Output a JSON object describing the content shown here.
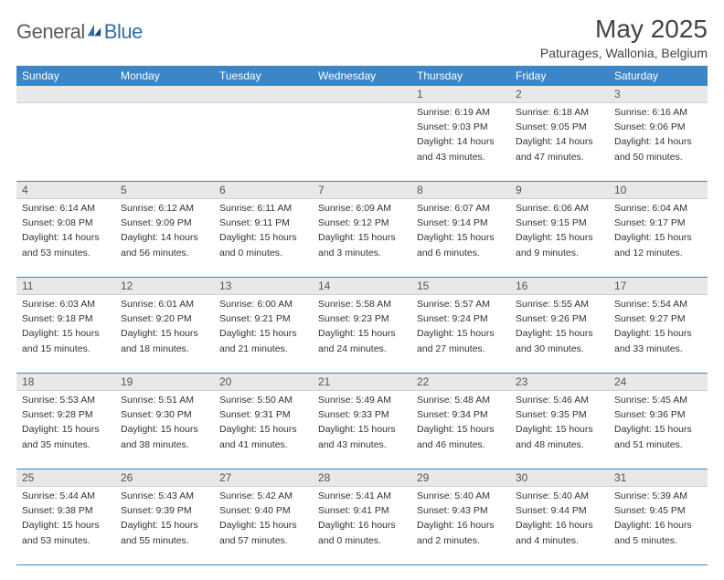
{
  "brand": {
    "part1": "General",
    "part2": "Blue",
    "color_general": "#5a5a5a",
    "color_blue": "#2f6fa8",
    "mark_color": "#2f6fa8"
  },
  "title": "May 2025",
  "location": "Paturages, Wallonia, Belgium",
  "header_bg": "#3b86c6",
  "header_fg": "#ffffff",
  "daynum_bg": "#e8e8e8",
  "border_color": "#3b86c6",
  "text_color": "#333333",
  "font_size_body": 10.5,
  "font_size_title": 28,
  "font_size_location": 14,
  "font_size_header": 12,
  "days_of_week": [
    "Sunday",
    "Monday",
    "Tuesday",
    "Wednesday",
    "Thursday",
    "Friday",
    "Saturday"
  ],
  "weeks": [
    [
      {
        "empty": true
      },
      {
        "empty": true
      },
      {
        "empty": true
      },
      {
        "empty": true
      },
      {
        "num": "1",
        "sunrise": "Sunrise: 6:19 AM",
        "sunset": "Sunset: 9:03 PM",
        "day1": "Daylight: 14 hours",
        "day2": "and 43 minutes."
      },
      {
        "num": "2",
        "sunrise": "Sunrise: 6:18 AM",
        "sunset": "Sunset: 9:05 PM",
        "day1": "Daylight: 14 hours",
        "day2": "and 47 minutes."
      },
      {
        "num": "3",
        "sunrise": "Sunrise: 6:16 AM",
        "sunset": "Sunset: 9:06 PM",
        "day1": "Daylight: 14 hours",
        "day2": "and 50 minutes."
      }
    ],
    [
      {
        "num": "4",
        "sunrise": "Sunrise: 6:14 AM",
        "sunset": "Sunset: 9:08 PM",
        "day1": "Daylight: 14 hours",
        "day2": "and 53 minutes."
      },
      {
        "num": "5",
        "sunrise": "Sunrise: 6:12 AM",
        "sunset": "Sunset: 9:09 PM",
        "day1": "Daylight: 14 hours",
        "day2": "and 56 minutes."
      },
      {
        "num": "6",
        "sunrise": "Sunrise: 6:11 AM",
        "sunset": "Sunset: 9:11 PM",
        "day1": "Daylight: 15 hours",
        "day2": "and 0 minutes."
      },
      {
        "num": "7",
        "sunrise": "Sunrise: 6:09 AM",
        "sunset": "Sunset: 9:12 PM",
        "day1": "Daylight: 15 hours",
        "day2": "and 3 minutes."
      },
      {
        "num": "8",
        "sunrise": "Sunrise: 6:07 AM",
        "sunset": "Sunset: 9:14 PM",
        "day1": "Daylight: 15 hours",
        "day2": "and 6 minutes."
      },
      {
        "num": "9",
        "sunrise": "Sunrise: 6:06 AM",
        "sunset": "Sunset: 9:15 PM",
        "day1": "Daylight: 15 hours",
        "day2": "and 9 minutes."
      },
      {
        "num": "10",
        "sunrise": "Sunrise: 6:04 AM",
        "sunset": "Sunset: 9:17 PM",
        "day1": "Daylight: 15 hours",
        "day2": "and 12 minutes."
      }
    ],
    [
      {
        "num": "11",
        "sunrise": "Sunrise: 6:03 AM",
        "sunset": "Sunset: 9:18 PM",
        "day1": "Daylight: 15 hours",
        "day2": "and 15 minutes."
      },
      {
        "num": "12",
        "sunrise": "Sunrise: 6:01 AM",
        "sunset": "Sunset: 9:20 PM",
        "day1": "Daylight: 15 hours",
        "day2": "and 18 minutes."
      },
      {
        "num": "13",
        "sunrise": "Sunrise: 6:00 AM",
        "sunset": "Sunset: 9:21 PM",
        "day1": "Daylight: 15 hours",
        "day2": "and 21 minutes."
      },
      {
        "num": "14",
        "sunrise": "Sunrise: 5:58 AM",
        "sunset": "Sunset: 9:23 PM",
        "day1": "Daylight: 15 hours",
        "day2": "and 24 minutes."
      },
      {
        "num": "15",
        "sunrise": "Sunrise: 5:57 AM",
        "sunset": "Sunset: 9:24 PM",
        "day1": "Daylight: 15 hours",
        "day2": "and 27 minutes."
      },
      {
        "num": "16",
        "sunrise": "Sunrise: 5:55 AM",
        "sunset": "Sunset: 9:26 PM",
        "day1": "Daylight: 15 hours",
        "day2": "and 30 minutes."
      },
      {
        "num": "17",
        "sunrise": "Sunrise: 5:54 AM",
        "sunset": "Sunset: 9:27 PM",
        "day1": "Daylight: 15 hours",
        "day2": "and 33 minutes."
      }
    ],
    [
      {
        "num": "18",
        "sunrise": "Sunrise: 5:53 AM",
        "sunset": "Sunset: 9:28 PM",
        "day1": "Daylight: 15 hours",
        "day2": "and 35 minutes."
      },
      {
        "num": "19",
        "sunrise": "Sunrise: 5:51 AM",
        "sunset": "Sunset: 9:30 PM",
        "day1": "Daylight: 15 hours",
        "day2": "and 38 minutes."
      },
      {
        "num": "20",
        "sunrise": "Sunrise: 5:50 AM",
        "sunset": "Sunset: 9:31 PM",
        "day1": "Daylight: 15 hours",
        "day2": "and 41 minutes."
      },
      {
        "num": "21",
        "sunrise": "Sunrise: 5:49 AM",
        "sunset": "Sunset: 9:33 PM",
        "day1": "Daylight: 15 hours",
        "day2": "and 43 minutes."
      },
      {
        "num": "22",
        "sunrise": "Sunrise: 5:48 AM",
        "sunset": "Sunset: 9:34 PM",
        "day1": "Daylight: 15 hours",
        "day2": "and 46 minutes."
      },
      {
        "num": "23",
        "sunrise": "Sunrise: 5:46 AM",
        "sunset": "Sunset: 9:35 PM",
        "day1": "Daylight: 15 hours",
        "day2": "and 48 minutes."
      },
      {
        "num": "24",
        "sunrise": "Sunrise: 5:45 AM",
        "sunset": "Sunset: 9:36 PM",
        "day1": "Daylight: 15 hours",
        "day2": "and 51 minutes."
      }
    ],
    [
      {
        "num": "25",
        "sunrise": "Sunrise: 5:44 AM",
        "sunset": "Sunset: 9:38 PM",
        "day1": "Daylight: 15 hours",
        "day2": "and 53 minutes."
      },
      {
        "num": "26",
        "sunrise": "Sunrise: 5:43 AM",
        "sunset": "Sunset: 9:39 PM",
        "day1": "Daylight: 15 hours",
        "day2": "and 55 minutes."
      },
      {
        "num": "27",
        "sunrise": "Sunrise: 5:42 AM",
        "sunset": "Sunset: 9:40 PM",
        "day1": "Daylight: 15 hours",
        "day2": "and 57 minutes."
      },
      {
        "num": "28",
        "sunrise": "Sunrise: 5:41 AM",
        "sunset": "Sunset: 9:41 PM",
        "day1": "Daylight: 16 hours",
        "day2": "and 0 minutes."
      },
      {
        "num": "29",
        "sunrise": "Sunrise: 5:40 AM",
        "sunset": "Sunset: 9:43 PM",
        "day1": "Daylight: 16 hours",
        "day2": "and 2 minutes."
      },
      {
        "num": "30",
        "sunrise": "Sunrise: 5:40 AM",
        "sunset": "Sunset: 9:44 PM",
        "day1": "Daylight: 16 hours",
        "day2": "and 4 minutes."
      },
      {
        "num": "31",
        "sunrise": "Sunrise: 5:39 AM",
        "sunset": "Sunset: 9:45 PM",
        "day1": "Daylight: 16 hours",
        "day2": "and 5 minutes."
      }
    ]
  ]
}
